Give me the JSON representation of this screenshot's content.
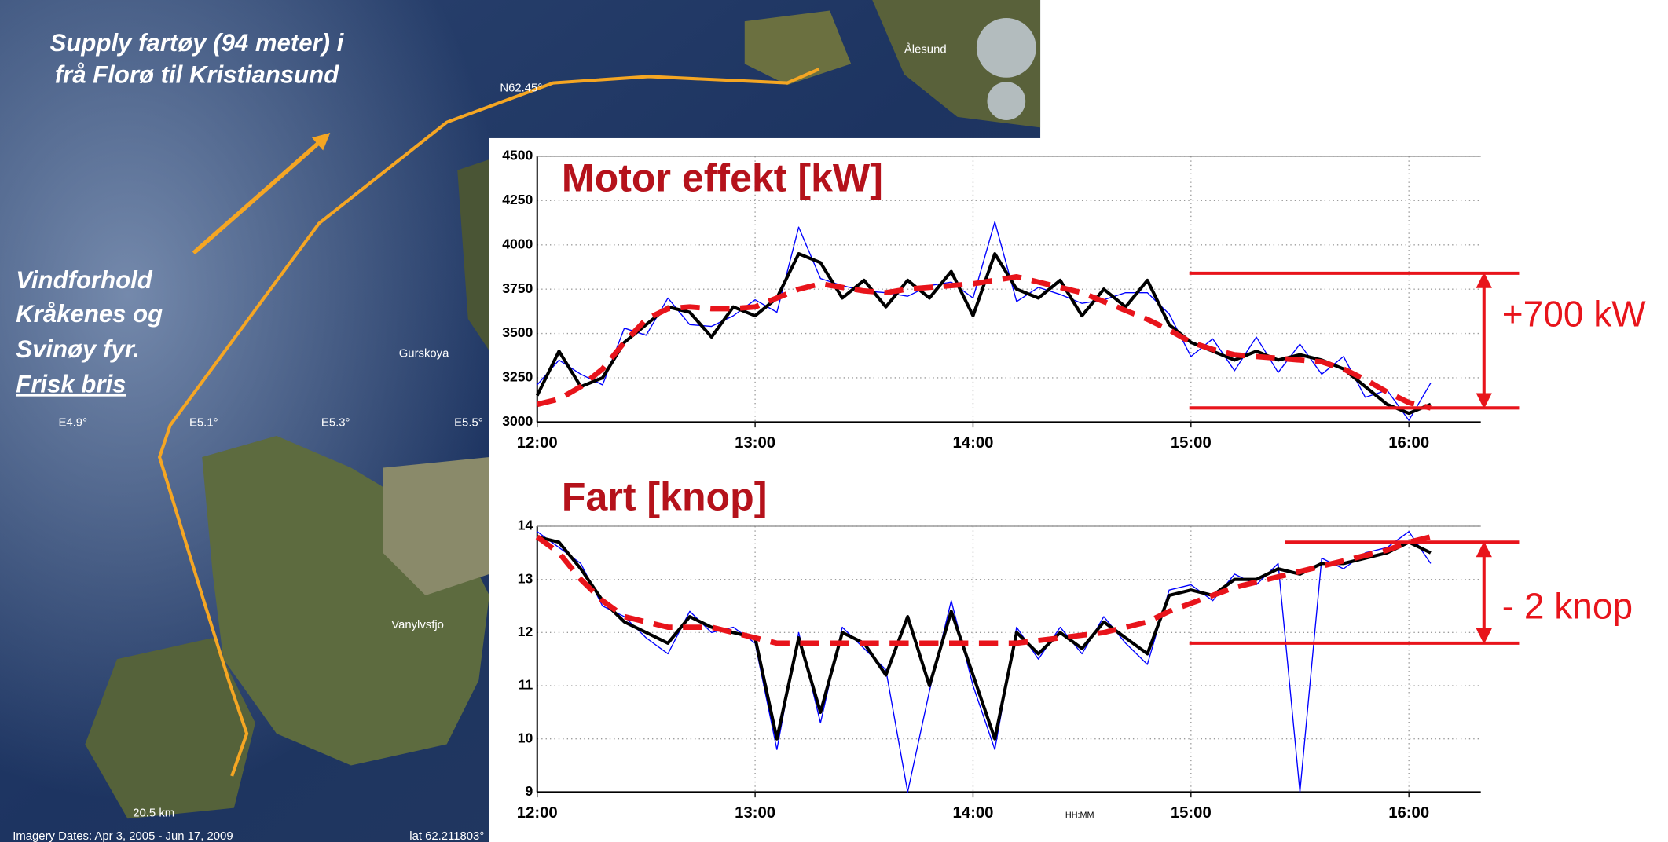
{
  "map": {
    "title_lines": [
      "Supply fartøy (94 meter) i",
      "frå Florø til Kristiansund"
    ],
    "wind_lines": [
      "Vindforhold",
      "Kråkenes og",
      "Svinøy fyr."
    ],
    "wind_emphasis": "Frisk bris",
    "labels": [
      "N62.45°",
      "E4.9°",
      "E5.1°",
      "E5.3°",
      "E5.5°",
      "Gurskoya",
      "Ålesund",
      "Vanylvsfjo"
    ],
    "scale": "20.5 km",
    "imagery": "Imagery Dates: Apr 3, 2005 - Jun 17, 2009",
    "coords": "lat 62.211803°"
  },
  "chart_data": [
    {
      "type": "line",
      "title": "Motor effekt [kW]",
      "annotation": "+700 kW",
      "x": [
        12.0,
        12.1,
        12.2,
        12.3,
        12.4,
        12.5,
        12.6,
        12.7,
        12.8,
        12.9,
        13.0,
        13.1,
        13.2,
        13.3,
        13.4,
        13.5,
        13.6,
        13.7,
        13.8,
        13.9,
        14.0,
        14.1,
        14.2,
        14.3,
        14.4,
        14.5,
        14.6,
        14.7,
        14.8,
        14.9,
        15.0,
        15.1,
        15.2,
        15.3,
        15.4,
        15.5,
        15.6,
        15.7,
        15.8,
        15.9,
        16.0,
        16.1
      ],
      "series": [
        {
          "color": "#0000ff",
          "values": [
            3210,
            3350,
            3270,
            3210,
            3530,
            3490,
            3700,
            3550,
            3540,
            3600,
            3690,
            3620,
            4100,
            3810,
            3770,
            3740,
            3730,
            3710,
            3770,
            3790,
            3700,
            4130,
            3680,
            3760,
            3720,
            3670,
            3690,
            3730,
            3730,
            3610,
            3370,
            3470,
            3290,
            3480,
            3280,
            3440,
            3270,
            3370,
            3140,
            3180,
            3010,
            3220
          ]
        },
        {
          "color": "#000000",
          "values": [
            3150,
            3400,
            3200,
            3250,
            3450,
            3550,
            3650,
            3620,
            3480,
            3650,
            3600,
            3700,
            3950,
            3900,
            3700,
            3800,
            3650,
            3800,
            3700,
            3850,
            3600,
            3950,
            3750,
            3700,
            3800,
            3600,
            3750,
            3650,
            3800,
            3550,
            3450,
            3400,
            3350,
            3400,
            3350,
            3380,
            3350,
            3300,
            3200,
            3100,
            3050,
            3100
          ]
        },
        {
          "color": "#e8141b",
          "dashed": true,
          "values": [
            3100,
            3130,
            3200,
            3300,
            3450,
            3580,
            3640,
            3650,
            3640,
            3640,
            3650,
            3700,
            3750,
            3780,
            3760,
            3740,
            3730,
            3750,
            3760,
            3770,
            3780,
            3800,
            3820,
            3790,
            3760,
            3730,
            3680,
            3630,
            3580,
            3520,
            3450,
            3410,
            3380,
            3370,
            3360,
            3350,
            3340,
            3300,
            3240,
            3170,
            3110,
            3080
          ]
        }
      ],
      "hlines": [
        3840,
        3080
      ],
      "hline_color": "#e8141b",
      "xlim": [
        12,
        16.33
      ],
      "xticks": [
        {
          "value": 12,
          "label": "12:00"
        },
        {
          "value": 13,
          "label": "13:00"
        },
        {
          "value": 14,
          "label": "14:00"
        },
        {
          "value": 15,
          "label": "15:00"
        },
        {
          "value": 16,
          "label": "16:00"
        }
      ],
      "ylim": [
        3000,
        4500
      ],
      "yticks": [
        3000,
        3250,
        3500,
        3750,
        4000,
        4250,
        4500
      ],
      "grid": true
    },
    {
      "type": "line",
      "title": "Fart [knop]",
      "annotation": "- 2 knop",
      "xlabel": "HH:MM",
      "x": [
        12.0,
        12.1,
        12.2,
        12.3,
        12.4,
        12.5,
        12.6,
        12.7,
        12.8,
        12.9,
        13.0,
        13.1,
        13.2,
        13.3,
        13.4,
        13.5,
        13.6,
        13.7,
        13.8,
        13.9,
        14.0,
        14.1,
        14.2,
        14.3,
        14.4,
        14.5,
        14.6,
        14.7,
        14.8,
        14.9,
        15.0,
        15.1,
        15.2,
        15.3,
        15.4,
        15.5,
        15.6,
        15.7,
        15.8,
        15.9,
        16.0,
        16.1
      ],
      "series": [
        {
          "color": "#0000ff",
          "values": [
            13.9,
            13.6,
            13.3,
            12.5,
            12.3,
            11.9,
            11.6,
            12.4,
            12.0,
            12.1,
            11.8,
            9.8,
            12.0,
            10.3,
            12.1,
            11.7,
            11.3,
            9.0,
            10.9,
            12.6,
            11.0,
            9.8,
            12.1,
            11.5,
            12.1,
            11.6,
            12.3,
            11.8,
            11.4,
            12.8,
            12.9,
            12.6,
            13.1,
            12.9,
            13.3,
            9.0,
            13.4,
            13.2,
            13.5,
            13.6,
            13.9,
            13.3
          ]
        },
        {
          "color": "#000000",
          "values": [
            13.8,
            13.7,
            13.2,
            12.6,
            12.2,
            12.0,
            11.8,
            12.3,
            12.1,
            12.0,
            11.9,
            10.0,
            11.9,
            10.5,
            12.0,
            11.8,
            11.2,
            12.3,
            11.0,
            12.4,
            11.2,
            10.0,
            12.0,
            11.6,
            12.0,
            11.7,
            12.2,
            11.9,
            11.6,
            12.7,
            12.8,
            12.7,
            13.0,
            13.0,
            13.2,
            13.1,
            13.3,
            13.3,
            13.4,
            13.5,
            13.7,
            13.5
          ]
        },
        {
          "color": "#e8141b",
          "dashed": true,
          "values": [
            13.8,
            13.5,
            13.0,
            12.6,
            12.3,
            12.2,
            12.1,
            12.1,
            12.1,
            12.0,
            11.9,
            11.8,
            11.8,
            11.8,
            11.8,
            11.8,
            11.8,
            11.8,
            11.8,
            11.8,
            11.8,
            11.8,
            11.8,
            11.85,
            11.9,
            11.95,
            12.0,
            12.1,
            12.2,
            12.4,
            12.55,
            12.7,
            12.85,
            12.95,
            13.05,
            13.15,
            13.25,
            13.35,
            13.45,
            13.55,
            13.7,
            13.8
          ]
        }
      ],
      "hlines": [
        13.7,
        11.8
      ],
      "hline_color": "#e8141b",
      "xlim": [
        12,
        16.33
      ],
      "xticks": [
        {
          "value": 12,
          "label": "12:00"
        },
        {
          "value": 13,
          "label": "13:00"
        },
        {
          "value": 14,
          "label": "14:00"
        },
        {
          "value": 15,
          "label": "15:00"
        },
        {
          "value": 16,
          "label": "16:00"
        }
      ],
      "ylim": [
        9,
        14
      ],
      "yticks": [
        9,
        10,
        11,
        12,
        13,
        14
      ],
      "grid": true
    }
  ]
}
